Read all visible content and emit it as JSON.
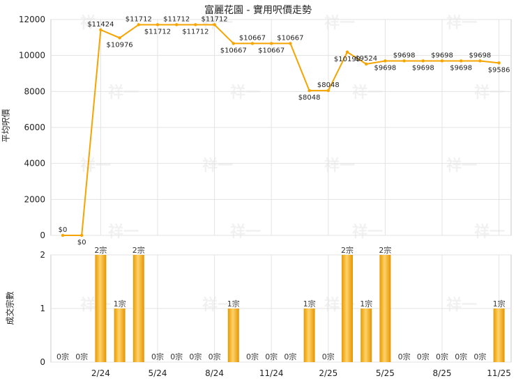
{
  "chart_data": [
    {
      "type": "line",
      "title": "富麗花園 - 實用呎價走勢",
      "ylabel": "平均呎價",
      "ylim": [
        0,
        12000
      ],
      "yticks": [
        0,
        2000,
        4000,
        6000,
        8000,
        10000,
        12000
      ],
      "color": "#f5a400",
      "x_tick_labels": [
        "2/24",
        "5/24",
        "8/24",
        "11/24",
        "2/25",
        "5/25",
        "8/25",
        "11/25"
      ],
      "tick_month_indices": [
        2,
        5,
        8,
        11,
        14,
        17,
        20,
        23
      ],
      "points": [
        {
          "m": 0,
          "value": 0,
          "label": "$0"
        },
        {
          "m": 1,
          "value": 0,
          "label": "$0"
        },
        {
          "m": 2,
          "value": 11424,
          "label": "$11424"
        },
        {
          "m": 3,
          "value": 10976,
          "label": "$10976"
        },
        {
          "m": 4,
          "value": 11712,
          "label": "$11712"
        },
        {
          "m": 5,
          "value": 11712,
          "label": "$11712"
        },
        {
          "m": 6,
          "value": 11712,
          "label": "$11712"
        },
        {
          "m": 7,
          "value": 11712,
          "label": "$11712"
        },
        {
          "m": 8,
          "value": 11712,
          "label": "$11712"
        },
        {
          "m": 9,
          "value": 10667,
          "label": "$10667"
        },
        {
          "m": 10,
          "value": 10667,
          "label": "$10667"
        },
        {
          "m": 11,
          "value": 10667,
          "label": "$10667"
        },
        {
          "m": 12,
          "value": 10667,
          "label": "$10667"
        },
        {
          "m": 13,
          "value": 8048,
          "label": "$8048"
        },
        {
          "m": 14,
          "value": 8048,
          "label": "$8048"
        },
        {
          "m": 15,
          "value": 10190,
          "label": "$10190"
        },
        {
          "m": 16,
          "value": 9524,
          "label": "$9524"
        },
        {
          "m": 17,
          "value": 9698,
          "label": "$9698"
        },
        {
          "m": 18,
          "value": 9698,
          "label": "$9698"
        },
        {
          "m": 19,
          "value": 9698,
          "label": "$9698"
        },
        {
          "m": 20,
          "value": 9698,
          "label": "$9698"
        },
        {
          "m": 21,
          "value": 9698,
          "label": "$9698"
        },
        {
          "m": 22,
          "value": 9698,
          "label": "$9698"
        },
        {
          "m": 23,
          "value": 9586,
          "label": "$9586"
        }
      ]
    },
    {
      "type": "bar",
      "ylabel": "成交宗數",
      "ylim": [
        0,
        2
      ],
      "yticks": [
        0,
        1,
        2
      ],
      "color": "#f5a400",
      "unit": "宗",
      "values": [
        0,
        0,
        2,
        1,
        2,
        0,
        0,
        0,
        0,
        1,
        0,
        0,
        0,
        1,
        0,
        2,
        1,
        2,
        0,
        0,
        0,
        0,
        0,
        1
      ],
      "x_tick_labels": [
        "2/24",
        "5/24",
        "8/24",
        "11/24",
        "2/25",
        "5/25",
        "8/25",
        "11/25"
      ]
    }
  ],
  "watermark": "祥一"
}
